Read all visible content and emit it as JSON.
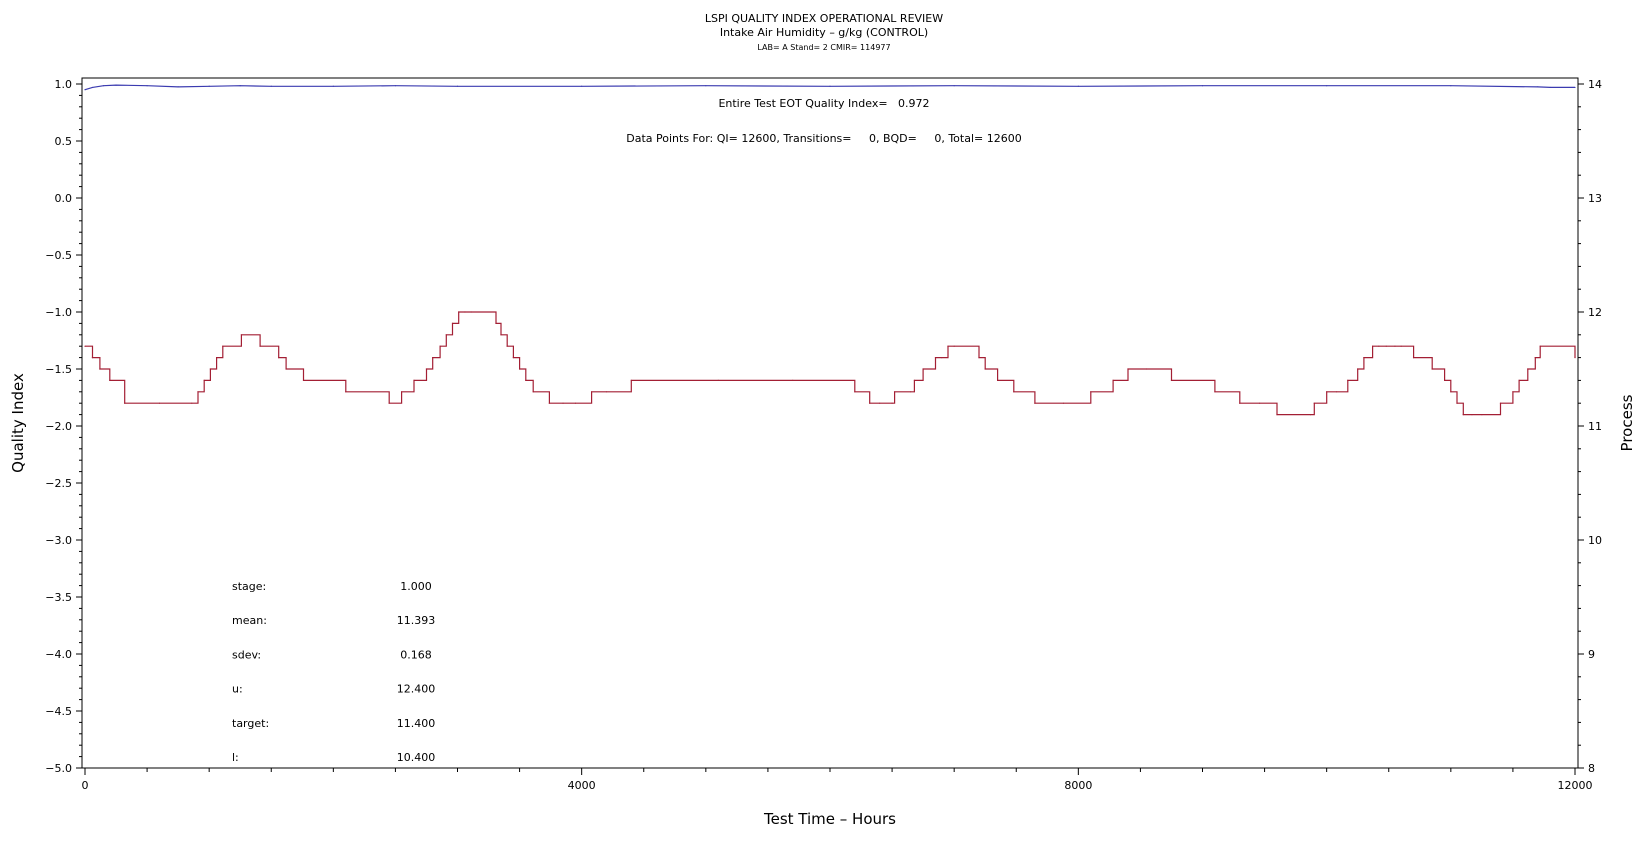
{
  "chart_data": {
    "type": "line",
    "title": "LSPI QUALITY INDEX OPERATIONAL REVIEW",
    "subtitle": "Intake Air Humidity – g/kg (CONTROL)",
    "subsubtitle": "LAB= A Stand= 2 CMIR= 114977",
    "xlabel": "Test Time – Hours",
    "ylabel_left": "Quality Index",
    "ylabel_right": "Process",
    "xlim": [
      0,
      12000
    ],
    "ylim_left": [
      -5.0,
      1.0
    ],
    "ylim_right": [
      8,
      14
    ],
    "x_ticks": [
      "0",
      "4000",
      "8000",
      "12000"
    ],
    "y_left_ticks": [
      "1.0",
      "0.5",
      "0.0",
      "−0.5",
      "−1.0",
      "−1.5",
      "−2.0",
      "−2.5",
      "−3.0",
      "−3.5",
      "−4.0",
      "−4.5",
      "−5.0"
    ],
    "y_right_ticks": [
      "14",
      "13",
      "12",
      "11",
      "10",
      "9",
      "8"
    ],
    "annotations": {
      "eot": "Entire Test EOT Quality Index=   0.972",
      "datapoints": "Data Points For: QI= 12600, Transitions=     0, BQD=     0, Total= 12600"
    },
    "stats": [
      {
        "label": "stage:",
        "value": "1.000"
      },
      {
        "label": "mean:",
        "value": "11.393"
      },
      {
        "label": "sdev:",
        "value": "0.168"
      },
      {
        "label": "u:",
        "value": "12.400"
      },
      {
        "label": "target:",
        "value": "11.400"
      },
      {
        "label": "l:",
        "value": "10.400"
      }
    ],
    "series": [
      {
        "axis": "left",
        "color": "#3b3bb0",
        "x": [
          0,
          60,
          150,
          250,
          500,
          750,
          1000,
          1250,
          1500,
          2000,
          2500,
          3000,
          4000,
          5000,
          6000,
          7000,
          8000,
          9000,
          10000,
          11000,
          11700,
          11800,
          12000
        ],
        "y": [
          0.95,
          0.97,
          0.985,
          0.99,
          0.985,
          0.975,
          0.98,
          0.985,
          0.98,
          0.98,
          0.985,
          0.98,
          0.98,
          0.985,
          0.98,
          0.985,
          0.98,
          0.985,
          0.985,
          0.985,
          0.975,
          0.97,
          0.97
        ]
      },
      {
        "axis": "right",
        "color": "#a31f34",
        "x": [
          0,
          60,
          120,
          200,
          320,
          600,
          860,
          910,
          960,
          1010,
          1060,
          1110,
          1260,
          1410,
          1560,
          1620,
          1760,
          2100,
          2450,
          2550,
          2650,
          2750,
          2800,
          2860,
          2910,
          2960,
          3010,
          3060,
          3110,
          3310,
          3350,
          3400,
          3450,
          3500,
          3550,
          3610,
          3740,
          3850,
          3950,
          4080,
          4200,
          4400,
          5100,
          5700,
          6200,
          6320,
          6400,
          6500,
          6520,
          6650,
          6680,
          6750,
          6850,
          6900,
          6950,
          7000,
          7200,
          7250,
          7350,
          7480,
          7650,
          7880,
          8100,
          8280,
          8400,
          8550,
          8750,
          9100,
          9300,
          9460,
          9600,
          9870,
          9900,
          10000,
          10080,
          10170,
          10250,
          10300,
          10370,
          10420,
          10480,
          10550,
          10600,
          10700,
          10850,
          10950,
          11000,
          11050,
          11100,
          11170,
          11250,
          11400,
          11500,
          11550,
          11620,
          11680,
          11720,
          12000
        ],
        "y": [
          11.7,
          11.6,
          11.5,
          11.4,
          11.2,
          11.2,
          11.2,
          11.3,
          11.4,
          11.5,
          11.6,
          11.7,
          11.8,
          11.7,
          11.6,
          11.5,
          11.4,
          11.3,
          11.2,
          11.3,
          11.4,
          11.5,
          11.6,
          11.7,
          11.8,
          11.9,
          12.0,
          12.0,
          12.0,
          11.9,
          11.8,
          11.7,
          11.6,
          11.5,
          11.4,
          11.3,
          11.2,
          11.2,
          11.2,
          11.3,
          11.3,
          11.4,
          11.4,
          11.4,
          11.3,
          11.2,
          11.2,
          11.2,
          11.3,
          11.3,
          11.4,
          11.5,
          11.6,
          11.6,
          11.7,
          11.7,
          11.6,
          11.5,
          11.4,
          11.3,
          11.2,
          11.2,
          11.3,
          11.4,
          11.5,
          11.5,
          11.4,
          11.3,
          11.2,
          11.2,
          11.1,
          11.1,
          11.2,
          11.3,
          11.3,
          11.4,
          11.5,
          11.6,
          11.7,
          11.7,
          11.7,
          11.7,
          11.7,
          11.6,
          11.5,
          11.4,
          11.3,
          11.2,
          11.1,
          11.1,
          11.1,
          11.2,
          11.3,
          11.4,
          11.5,
          11.6,
          11.7,
          11.6
        ]
      }
    ]
  }
}
